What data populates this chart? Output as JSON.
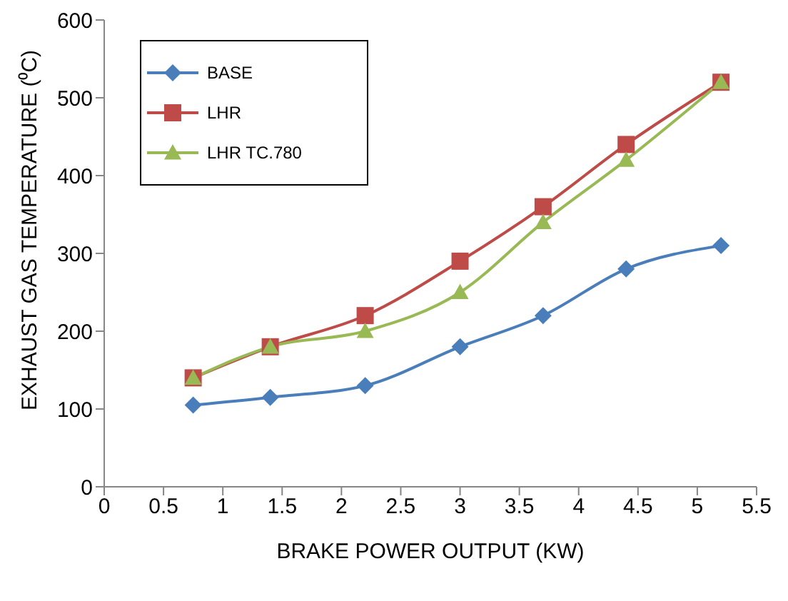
{
  "chart_data": {
    "type": "line",
    "xlabel": "BRAKE POWER OUTPUT (KW)",
    "ylabel": "EXHAUST GAS TEMPERATURE (⁰C)",
    "x": [
      0.75,
      1.4,
      2.2,
      3,
      3.7,
      4.4,
      5.2
    ],
    "xlim": [
      0,
      5.5
    ],
    "xticks": [
      0,
      0.5,
      1,
      1.5,
      2,
      2.5,
      3,
      3.5,
      4,
      4.5,
      5,
      5.5
    ],
    "ylim": [
      0,
      600
    ],
    "yticks": [
      0,
      100,
      200,
      300,
      400,
      500,
      600
    ],
    "grid": false,
    "legend": "top left",
    "series": [
      {
        "name": "BASE",
        "color": "#4a7ebb",
        "marker": "diamond",
        "values": [
          105,
          115,
          130,
          180,
          220,
          280,
          310
        ]
      },
      {
        "name": "LHR",
        "color": "#be4b48",
        "marker": "square",
        "values": [
          140,
          180,
          220,
          290,
          360,
          440,
          520
        ]
      },
      {
        "name": "LHR TC.780",
        "color": "#98b954",
        "marker": "triangle",
        "values": [
          140,
          180,
          200,
          250,
          340,
          420,
          520
        ]
      }
    ]
  }
}
